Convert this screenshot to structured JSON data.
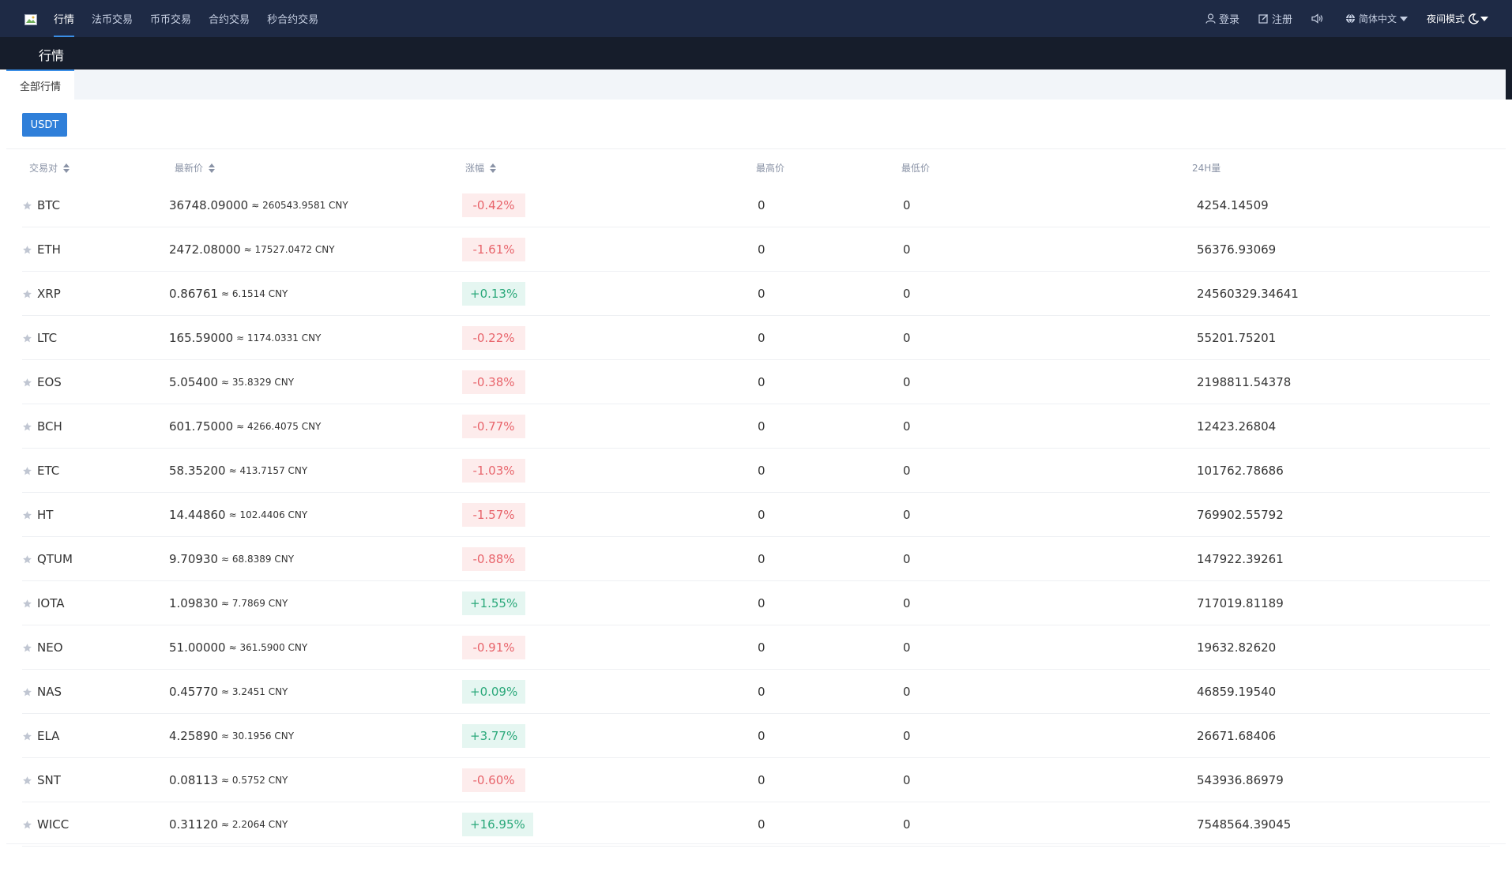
{
  "nav": {
    "menu": [
      "行情",
      "法币交易",
      "币币交易",
      "合约交易",
      "秒合约交易"
    ],
    "login": "登录",
    "register": "注册",
    "language": "简体中文",
    "night_mode": "夜间模式"
  },
  "subheader": {
    "title": "行情"
  },
  "tabs": {
    "all": "全部行情"
  },
  "currency": "USDT",
  "table": {
    "headers": {
      "pair": "交易对",
      "last": "最新价",
      "change": "涨幅",
      "high": "最高价",
      "low": "最低价",
      "volume": "24H量"
    },
    "rows": [
      {
        "coin": "BTC",
        "price": "36748.09000",
        "cny": "≈ 260543.9581 CNY",
        "change": "-0.42%",
        "dir": "down",
        "high": "0",
        "low": "0",
        "vol": "4254.14509"
      },
      {
        "coin": "ETH",
        "price": "2472.08000",
        "cny": "≈ 17527.0472 CNY",
        "change": "-1.61%",
        "dir": "down",
        "high": "0",
        "low": "0",
        "vol": "56376.93069"
      },
      {
        "coin": "XRP",
        "price": "0.86761",
        "cny": "≈ 6.1514 CNY",
        "change": "+0.13%",
        "dir": "up",
        "high": "0",
        "low": "0",
        "vol": "24560329.34641"
      },
      {
        "coin": "LTC",
        "price": "165.59000",
        "cny": "≈ 1174.0331 CNY",
        "change": "-0.22%",
        "dir": "down",
        "high": "0",
        "low": "0",
        "vol": "55201.75201"
      },
      {
        "coin": "EOS",
        "price": "5.05400",
        "cny": "≈ 35.8329 CNY",
        "change": "-0.38%",
        "dir": "down",
        "high": "0",
        "low": "0",
        "vol": "2198811.54378"
      },
      {
        "coin": "BCH",
        "price": "601.75000",
        "cny": "≈ 4266.4075 CNY",
        "change": "-0.77%",
        "dir": "down",
        "high": "0",
        "low": "0",
        "vol": "12423.26804"
      },
      {
        "coin": "ETC",
        "price": "58.35200",
        "cny": "≈ 413.7157 CNY",
        "change": "-1.03%",
        "dir": "down",
        "high": "0",
        "low": "0",
        "vol": "101762.78686"
      },
      {
        "coin": "HT",
        "price": "14.44860",
        "cny": "≈ 102.4406 CNY",
        "change": "-1.57%",
        "dir": "down",
        "high": "0",
        "low": "0",
        "vol": "769902.55792"
      },
      {
        "coin": "QTUM",
        "price": "9.70930",
        "cny": "≈ 68.8389 CNY",
        "change": "-0.88%",
        "dir": "down",
        "high": "0",
        "low": "0",
        "vol": "147922.39261"
      },
      {
        "coin": "IOTA",
        "price": "1.09830",
        "cny": "≈ 7.7869 CNY",
        "change": "+1.55%",
        "dir": "up",
        "high": "0",
        "low": "0",
        "vol": "717019.81189"
      },
      {
        "coin": "NEO",
        "price": "51.00000",
        "cny": "≈ 361.5900 CNY",
        "change": "-0.91%",
        "dir": "down",
        "high": "0",
        "low": "0",
        "vol": "19632.82620"
      },
      {
        "coin": "NAS",
        "price": "0.45770",
        "cny": "≈ 3.2451 CNY",
        "change": "+0.09%",
        "dir": "up",
        "high": "0",
        "low": "0",
        "vol": "46859.19540"
      },
      {
        "coin": "ELA",
        "price": "4.25890",
        "cny": "≈ 30.1956 CNY",
        "change": "+3.77%",
        "dir": "up",
        "high": "0",
        "low": "0",
        "vol": "26671.68406"
      },
      {
        "coin": "SNT",
        "price": "0.08113",
        "cny": "≈ 0.5752 CNY",
        "change": "-0.60%",
        "dir": "down",
        "high": "0",
        "low": "0",
        "vol": "543936.86979"
      },
      {
        "coin": "WICC",
        "price": "0.31120",
        "cny": "≈ 2.2064 CNY",
        "change": "+16.95%",
        "dir": "up",
        "high": "0",
        "low": "0",
        "vol": "7548564.39045"
      }
    ]
  }
}
